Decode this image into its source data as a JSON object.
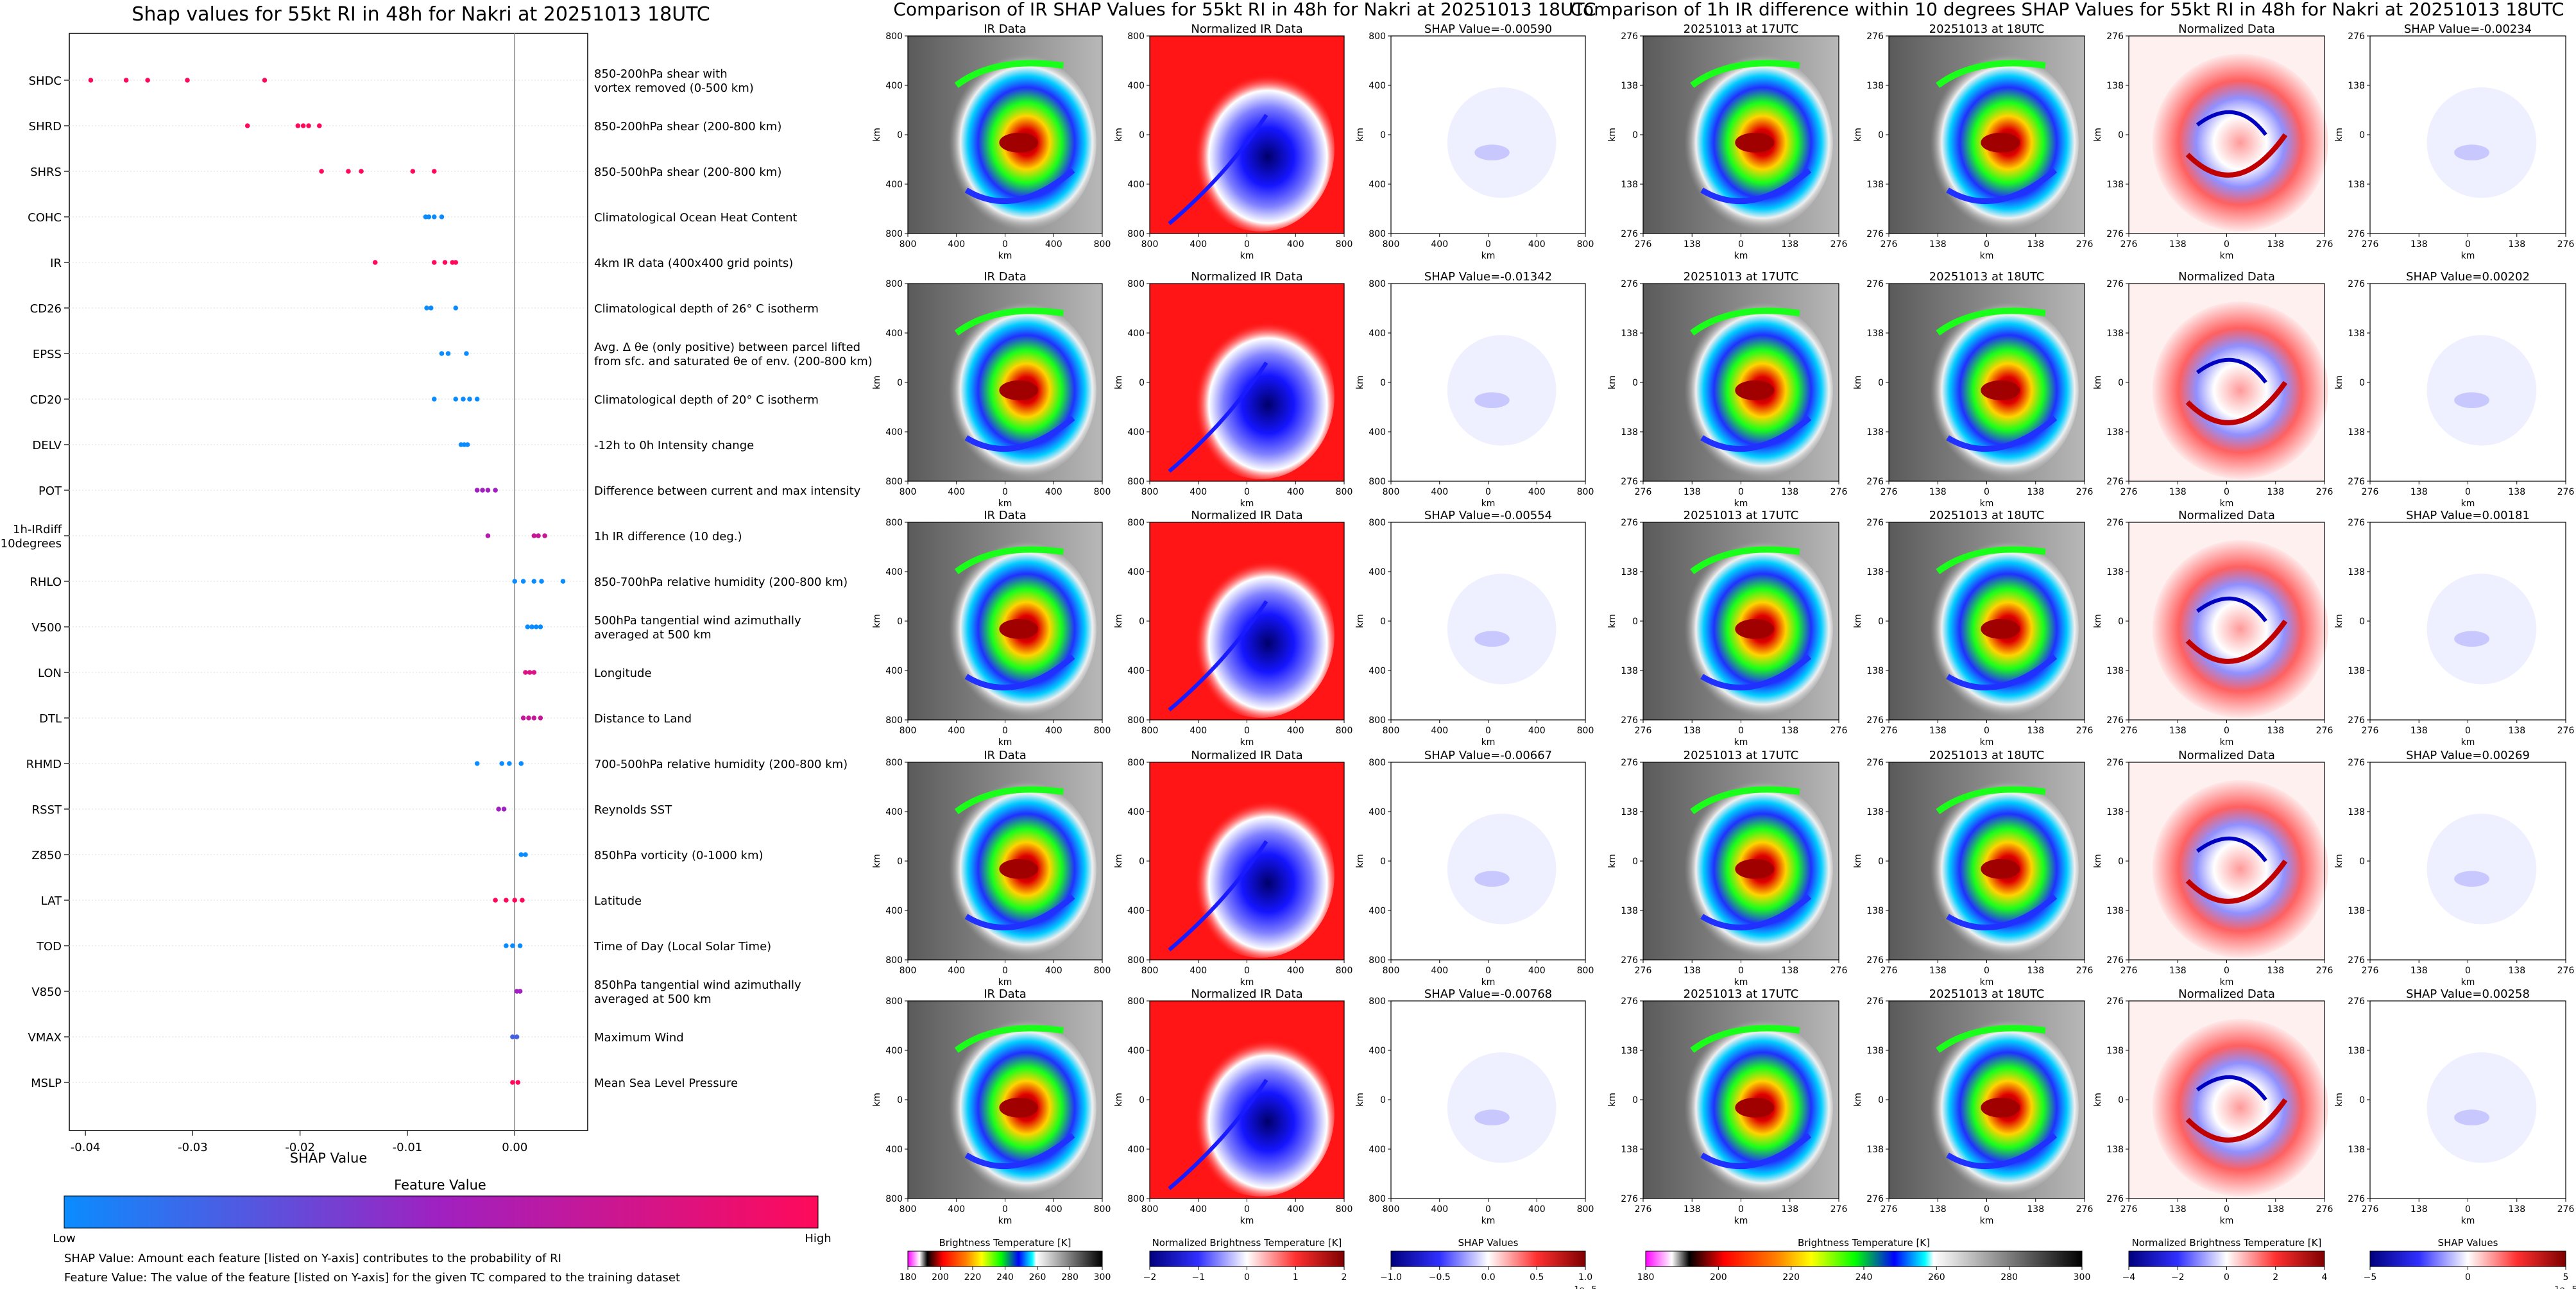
{
  "shap_panel": {
    "title": "Shap values for 55kt RI in 48h for Nakri at 20251013 18UTC",
    "xlabel": "SHAP Value",
    "colorbar_title": "Feature Value",
    "colorbar_low": "Low",
    "colorbar_high": "High",
    "notes": [
      "SHAP Value: Amount each feature [listed on Y-axis] contributes to the probability of RI",
      "Feature Value: The value of the feature [listed on Y-axis] for the given TC compared to the training dataset"
    ],
    "colors": {
      "low": "#0a8cff",
      "mid": "#a020c0",
      "high": "#ff0a5a"
    }
  },
  "chart_data": [
    {
      "type": "scatter",
      "title": "Shap values for 55kt RI in 48h for Nakri at 20251013 18UTC",
      "xlabel": "SHAP Value",
      "xlim": [
        -0.0415,
        0.0068
      ],
      "xticks": [
        -0.04,
        -0.03,
        -0.02,
        -0.01,
        0.0
      ],
      "xtick_labels": [
        "-0.04",
        "-0.03",
        "-0.02",
        "-0.01",
        "0.00"
      ],
      "features": [
        {
          "code": "SHDC",
          "desc": [
            "850-200hPa shear with",
            "vortex removed (0-500 km)"
          ],
          "points": [
            [
              -0.0395,
              1
            ],
            [
              -0.0362,
              1
            ],
            [
              -0.0342,
              1
            ],
            [
              -0.0305,
              1
            ],
            [
              -0.0233,
              1
            ]
          ]
        },
        {
          "code": "SHRD",
          "desc": [
            "850-200hPa shear (200-800 km)"
          ],
          "points": [
            [
              -0.0249,
              1
            ],
            [
              -0.0202,
              1
            ],
            [
              -0.0197,
              1
            ],
            [
              -0.0192,
              1
            ],
            [
              -0.0182,
              1
            ]
          ]
        },
        {
          "code": "SHRS",
          "desc": [
            "850-500hPa shear (200-800 km)"
          ],
          "points": [
            [
              -0.018,
              1
            ],
            [
              -0.0155,
              1
            ],
            [
              -0.0143,
              1
            ],
            [
              -0.0095,
              1
            ],
            [
              -0.0075,
              1
            ]
          ]
        },
        {
          "code": "COHC",
          "desc": [
            "Climatological Ocean Heat Content"
          ],
          "points": [
            [
              -0.0083,
              0
            ],
            [
              -0.008,
              0
            ],
            [
              -0.0075,
              0
            ],
            [
              -0.0068,
              0
            ]
          ]
        },
        {
          "code": "IR",
          "desc": [
            "4km IR data (400x400 grid points)"
          ],
          "points": [
            [
              -0.013,
              1
            ],
            [
              -0.0075,
              1
            ],
            [
              -0.0065,
              1
            ],
            [
              -0.0058,
              1
            ],
            [
              -0.0055,
              1
            ]
          ]
        },
        {
          "code": "CD26",
          "desc": [
            "Climatological depth of 26° C isotherm"
          ],
          "points": [
            [
              -0.0082,
              0
            ],
            [
              -0.0078,
              0
            ],
            [
              -0.0055,
              0
            ]
          ]
        },
        {
          "code": "EPSS",
          "desc": [
            "Avg. Δ θe (only positive) between parcel lifted",
            "from sfc. and saturated θe of env. (200-800 km)"
          ],
          "points": [
            [
              -0.0068,
              0
            ],
            [
              -0.0062,
              0
            ],
            [
              -0.0045,
              0
            ]
          ]
        },
        {
          "code": "CD20",
          "desc": [
            "Climatological depth of 20° C isotherm"
          ],
          "points": [
            [
              -0.0075,
              0
            ],
            [
              -0.0055,
              0
            ],
            [
              -0.0048,
              0
            ],
            [
              -0.0042,
              0
            ],
            [
              -0.0035,
              0
            ]
          ]
        },
        {
          "code": "DELV",
          "desc": [
            "-12h to 0h Intensity change"
          ],
          "points": [
            [
              -0.005,
              0
            ],
            [
              -0.0047,
              0
            ],
            [
              -0.0044,
              0
            ]
          ]
        },
        {
          "code": "POT",
          "desc": [
            "Difference between current and max intensity"
          ],
          "points": [
            [
              -0.0035,
              0.5
            ],
            [
              -0.003,
              0.5
            ],
            [
              -0.0025,
              0.5
            ],
            [
              -0.0018,
              0.5
            ]
          ]
        },
        {
          "code": "1h-IRdiff 10degrees",
          "label_lines": [
            "1h-IRdiff",
            "10degrees"
          ],
          "desc": [
            "1h IR difference (10 deg.)"
          ],
          "points": [
            [
              -0.0025,
              0.6
            ],
            [
              0.0018,
              0.7
            ],
            [
              0.0022,
              0.7
            ],
            [
              0.0028,
              0.7
            ]
          ]
        },
        {
          "code": "RHLO",
          "desc": [
            "850-700hPa relative humidity (200-800 km)"
          ],
          "points": [
            [
              0.0,
              0
            ],
            [
              0.0008,
              0
            ],
            [
              0.0018,
              0
            ],
            [
              0.0025,
              0
            ],
            [
              0.0045,
              0
            ]
          ]
        },
        {
          "code": "V500",
          "desc": [
            "500hPa tangential wind azimuthally",
            "averaged at 500 km"
          ],
          "points": [
            [
              0.0012,
              0
            ],
            [
              0.0016,
              0
            ],
            [
              0.002,
              0
            ],
            [
              0.0024,
              0
            ]
          ]
        },
        {
          "code": "LON",
          "desc": [
            "Longitude"
          ],
          "points": [
            [
              0.001,
              0.8
            ],
            [
              0.0014,
              0.8
            ],
            [
              0.0018,
              0.8
            ]
          ]
        },
        {
          "code": "DTL",
          "desc": [
            "Distance to Land"
          ],
          "points": [
            [
              0.0008,
              0.7
            ],
            [
              0.0013,
              0.7
            ],
            [
              0.0018,
              0.7
            ],
            [
              0.0024,
              0.7
            ]
          ]
        },
        {
          "code": "RHMD",
          "desc": [
            "700-500hPa relative humidity (200-800 km)"
          ],
          "points": [
            [
              -0.0035,
              0
            ],
            [
              -0.0012,
              0
            ],
            [
              -0.0005,
              0
            ],
            [
              0.0006,
              0
            ]
          ]
        },
        {
          "code": "RSST",
          "desc": [
            "Reynolds SST"
          ],
          "points": [
            [
              -0.0015,
              0.5
            ],
            [
              -0.001,
              0.5
            ]
          ]
        },
        {
          "code": "Z850",
          "desc": [
            "850hPa vorticity (0-1000 km)"
          ],
          "points": [
            [
              0.0006,
              0
            ],
            [
              0.001,
              0
            ]
          ]
        },
        {
          "code": "LAT",
          "desc": [
            "Latitude"
          ],
          "points": [
            [
              -0.0018,
              1
            ],
            [
              -0.0008,
              1
            ],
            [
              0.0,
              1
            ],
            [
              0.0007,
              1
            ]
          ]
        },
        {
          "code": "TOD",
          "desc": [
            "Time of Day (Local Solar Time)"
          ],
          "points": [
            [
              -0.0008,
              0
            ],
            [
              -0.0002,
              0
            ],
            [
              0.0005,
              0
            ]
          ]
        },
        {
          "code": "V850",
          "desc": [
            "850hPa tangential wind azimuthally",
            "averaged at 500 km"
          ],
          "points": [
            [
              0.0002,
              0.5
            ],
            [
              0.0005,
              0.5
            ]
          ]
        },
        {
          "code": "VMAX",
          "desc": [
            "Maximum Wind"
          ],
          "points": [
            [
              -0.0002,
              0.2
            ],
            [
              0.0002,
              0.2
            ]
          ]
        },
        {
          "code": "MSLP",
          "desc": [
            "Mean Sea Level Pressure"
          ],
          "points": [
            [
              -0.0002,
              1
            ],
            [
              0.0003,
              1
            ]
          ]
        }
      ],
      "colorbar": {
        "label": "Feature Value",
        "low": "Low",
        "high": "High"
      }
    },
    {
      "type": "heatmap",
      "title": "Comparison of IR SHAP Values for 55kt RI in 48h for Nakri at 20251013 18UTC",
      "panel_titles": [
        "IR Data",
        "Normalized IR Data"
      ],
      "shap_titles": [
        "SHAP Value=-0.00590",
        "SHAP Value=-0.01342",
        "SHAP Value=-0.00554",
        "SHAP Value=-0.00667",
        "SHAP Value=-0.00768"
      ],
      "shap_values": [
        -0.0059,
        -0.01342,
        -0.00554,
        -0.00667,
        -0.00768
      ],
      "xlabel": "km",
      "ylabel": "km",
      "xticks": [
        "800",
        "400",
        "0",
        "400",
        "800"
      ],
      "yticks": [
        "800",
        "400",
        "0",
        "400",
        "800"
      ],
      "colorbars": [
        {
          "label": "Brightness Temperature [K]",
          "ticks": [
            "180",
            "200",
            "220",
            "240",
            "260",
            "280",
            "300"
          ]
        },
        {
          "label": "Normalized Brightness Temperature [K]",
          "ticks": [
            "−2",
            "−1",
            "0",
            "1",
            "2"
          ]
        },
        {
          "label": "SHAP Values",
          "ticks": [
            "−1.0",
            "−0.5",
            "0.0",
            "0.5",
            "1.0"
          ],
          "multiplier": "1e−5"
        }
      ]
    },
    {
      "type": "heatmap",
      "title": "Comparison of 1h IR difference within 10 degrees SHAP Values for 55kt RI in 48h for Nakri at 20251013 18UTC",
      "panel_titles": [
        "20251013 at 17UTC",
        "20251013 at 18UTC",
        "Normalized Data"
      ],
      "shap_titles": [
        "SHAP Value=-0.00234",
        "SHAP Value=0.00202",
        "SHAP Value=0.00181",
        "SHAP Value=0.00269",
        "SHAP Value=0.00258"
      ],
      "shap_values": [
        -0.00234,
        0.00202,
        0.00181,
        0.00269,
        0.00258
      ],
      "xlabel": "km",
      "ylabel": "km",
      "xticks": [
        "276",
        "138",
        "0",
        "138",
        "276"
      ],
      "yticks": [
        "276",
        "138",
        "0",
        "138",
        "276"
      ],
      "colorbars": [
        {
          "label": "Brightness Temperature [K]",
          "ticks": [
            "180",
            "200",
            "220",
            "240",
            "260",
            "280",
            "300"
          ]
        },
        {
          "label": "Normalized Brightness Temperature [K]",
          "ticks": [
            "−4",
            "−2",
            "0",
            "2",
            "4"
          ]
        },
        {
          "label": "SHAP Values",
          "ticks": [
            "−5",
            "0",
            "5"
          ],
          "multiplier": "1e−5"
        }
      ]
    }
  ]
}
